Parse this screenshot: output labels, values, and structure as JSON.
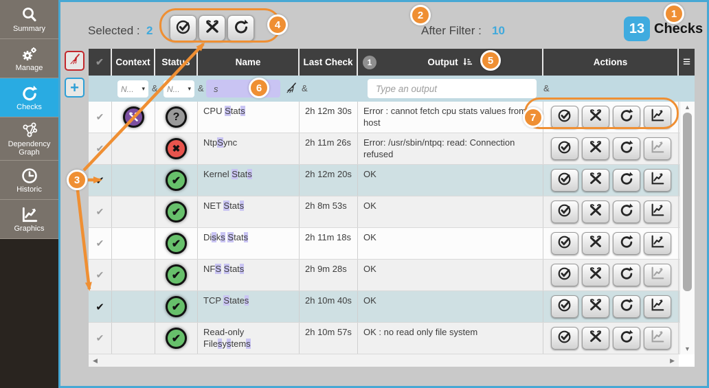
{
  "sidebar": {
    "items": [
      {
        "id": "summary",
        "label": "Summary",
        "active": false
      },
      {
        "id": "manage",
        "label": "Manage",
        "active": false
      },
      {
        "id": "checks",
        "label": "Checks",
        "active": true
      },
      {
        "id": "dependency-graph",
        "label": "Dependency Graph",
        "active": false
      },
      {
        "id": "historic",
        "label": "Historic",
        "active": false
      },
      {
        "id": "graphics",
        "label": "Graphics",
        "active": false
      }
    ]
  },
  "topbar": {
    "selected_label": "Selected :",
    "selected_count": "2",
    "after_filter_label": "After Filter :",
    "after_filter_count": "10",
    "total_count": "13",
    "total_label": "Checks"
  },
  "filter_row": {
    "context_filter": "N...",
    "status_filter": "N...",
    "name_filter_value": "s",
    "output_placeholder": "Type an output",
    "and_separator": "&",
    "output_filter_count": "1"
  },
  "table": {
    "headers": {
      "select": "✔",
      "context": "Context",
      "status": "Status",
      "name": "Name",
      "last_check": "Last Check",
      "output": "Output",
      "actions": "Actions",
      "menu": "≡"
    },
    "rows": [
      {
        "selected": false,
        "context": "tools",
        "status": "unknown",
        "name": "CPU Stats",
        "last_check": "2h 12m 30s",
        "output": "Error : cannot fetch cpu stats values from host",
        "graph_enabled": true
      },
      {
        "selected": false,
        "context": null,
        "status": "critical",
        "name": "NtpSync",
        "last_check": "2h 11m 26s",
        "output": "Error: /usr/sbin/ntpq: read: Connection refused",
        "graph_enabled": false
      },
      {
        "selected": true,
        "context": null,
        "status": "ok",
        "name": "Kernel Stats",
        "last_check": "2h 12m 20s",
        "output": "OK",
        "graph_enabled": true
      },
      {
        "selected": false,
        "context": null,
        "status": "ok",
        "name": "NET Stats",
        "last_check": "2h 8m 53s",
        "output": "OK",
        "graph_enabled": true
      },
      {
        "selected": false,
        "context": null,
        "status": "ok",
        "name": "Disks Stats",
        "last_check": "2h 11m 18s",
        "output": "OK",
        "graph_enabled": true
      },
      {
        "selected": false,
        "context": null,
        "status": "ok",
        "name": "NFS Stats",
        "last_check": "2h 9m 28s",
        "output": "OK",
        "graph_enabled": false
      },
      {
        "selected": true,
        "context": null,
        "status": "ok",
        "name": "TCP States",
        "last_check": "2h 10m 40s",
        "output": "OK",
        "graph_enabled": true
      },
      {
        "selected": false,
        "context": null,
        "status": "ok",
        "name": "Read-only Filesystems",
        "last_check": "2h 10m 57s",
        "output": "OK : no read only file system",
        "graph_enabled": false
      }
    ],
    "status_glyphs": {
      "ok": "✔",
      "critical": "✖",
      "unknown": "?"
    }
  },
  "annotations": {
    "badges": [
      "1",
      "2",
      "3",
      "4",
      "5",
      "6",
      "7"
    ]
  },
  "icons": {
    "sidebar": [
      "search-icon",
      "gears-icon",
      "recheck-icon",
      "dependency-graph-icon",
      "clock-icon",
      "chart-icon"
    ],
    "toolbar": [
      "acknowledge-icon",
      "tools-icon",
      "recheck-icon"
    ],
    "actions": [
      "acknowledge-icon",
      "tools-icon",
      "recheck-icon",
      "graph-icon"
    ],
    "other": [
      "broom-icon",
      "plus-icon",
      "sort-descending-icon",
      "hamburger-menu-icon",
      "caret-down-icon"
    ]
  },
  "colors": {
    "accent_blue": "#3fa9dc",
    "active_nav_blue": "#29abe2",
    "annotation_orange": "#ef8f33",
    "ok_green": "#67c06b",
    "critical_red": "#e8544d",
    "unknown_gray": "#9a9a9a",
    "context_purple": "#7b4fa0",
    "highlight_lavender": "#c9c4f3",
    "selected_row": "#cfe0e3",
    "header_dark": "#3f3f3f",
    "filter_row_blue": "#c1dae2"
  }
}
